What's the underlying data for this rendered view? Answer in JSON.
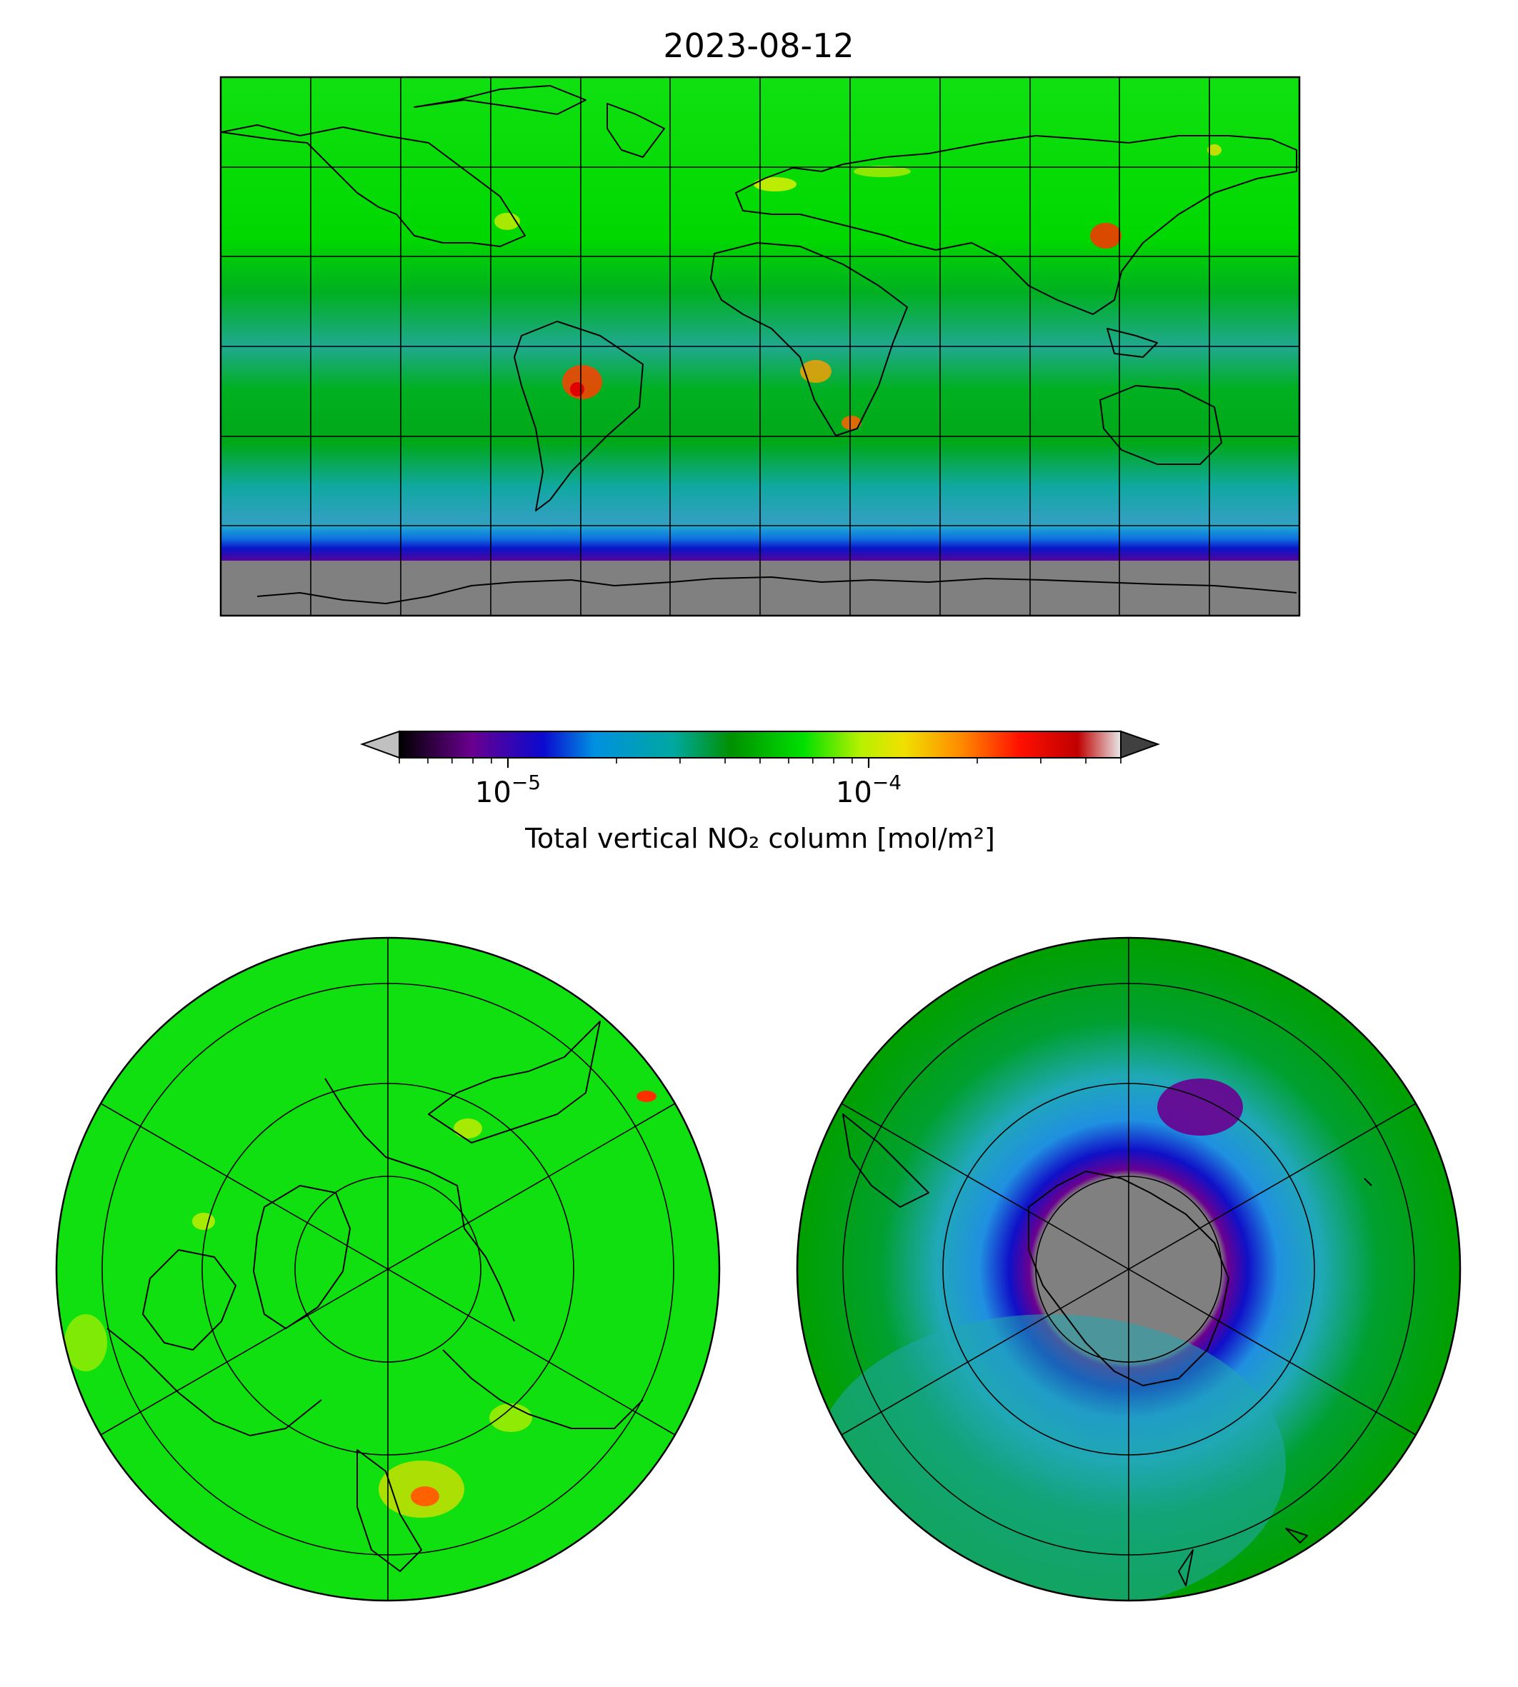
{
  "title": "2023-08-12",
  "colorbar": {
    "label": "Total vertical NO₂ column [mol/m²]",
    "scale": "log",
    "range": [
      5e-06,
      0.0005
    ],
    "ticks": [
      {
        "value": 1e-05,
        "base": "10",
        "exp": "−5"
      },
      {
        "value": 0.0001,
        "base": "10",
        "exp": "−4"
      }
    ],
    "extend": "both",
    "under_color": "#c0c0c0",
    "over_color": "#404040",
    "stops": [
      "#000000",
      "#6a008f",
      "#0a0ad0",
      "#0090e0",
      "#00a8a0",
      "#009000",
      "#00e000",
      "#b8f000",
      "#f0e000",
      "#ff8800",
      "#ff1000",
      "#c00000",
      "#e8e8e8"
    ]
  },
  "maps": {
    "global": {
      "projection": "equirectangular"
    },
    "north_polar": {
      "projection": "north-polar-stereographic"
    },
    "south_polar": {
      "projection": "south-polar-stereographic"
    }
  },
  "colors": {
    "land_background": "#00e000",
    "ocean_dark_green": "#00a000",
    "teal": "#10a8a8",
    "missing_data": "#808080",
    "hotspot": "#ff2000"
  }
}
